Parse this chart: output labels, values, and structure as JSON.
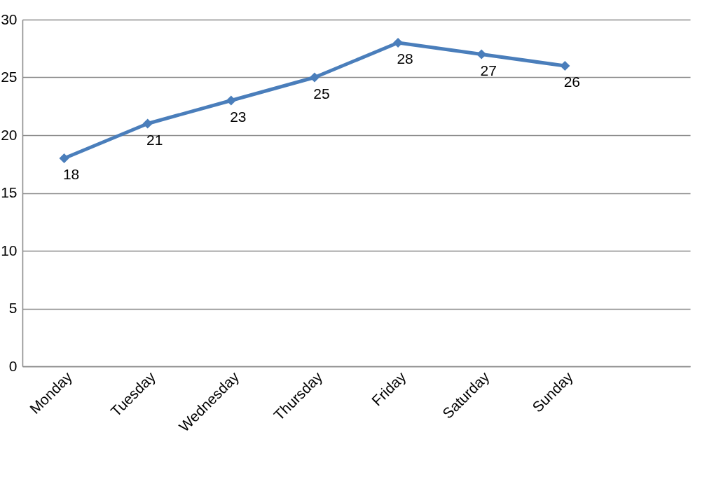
{
  "chart_data": {
    "type": "line",
    "categories": [
      "Monday",
      "Tuesday",
      "Wednesday",
      "Thursday",
      "Friday",
      "Saturday",
      "Sunday",
      null
    ],
    "series": [
      {
        "color": "#4a7ebb",
        "values": [
          18,
          21,
          23,
          25,
          28,
          27,
          26,
          null
        ]
      }
    ],
    "ylim": [
      0,
      30
    ],
    "yticks": [
      0,
      5,
      10,
      15,
      20,
      25,
      30
    ],
    "grid": "y",
    "legend": false,
    "marker": "diamond",
    "line_style": "solid",
    "data_labels": true
  }
}
